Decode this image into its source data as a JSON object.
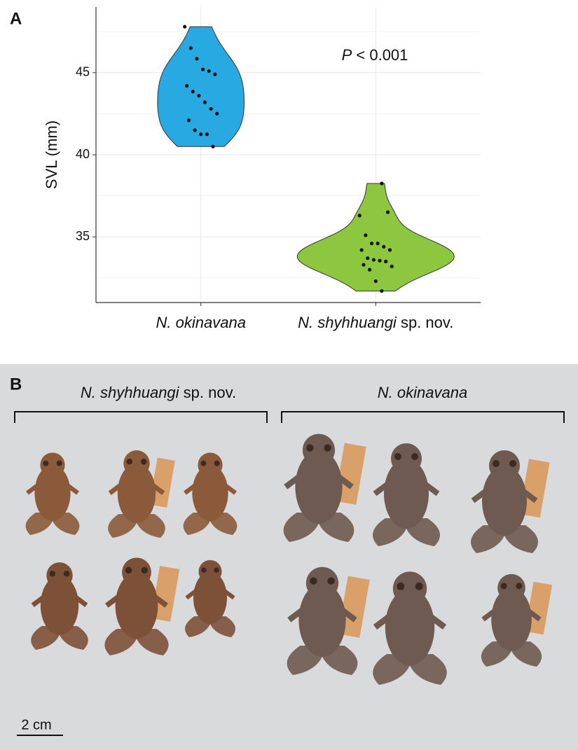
{
  "panel_a_label": "A",
  "chart_data": {
    "type": "violin",
    "y_label": "SVL (mm)",
    "annotation": "P < 0.001",
    "categories": [
      "N. okinavana",
      "N. shyhhuangi sp. nov."
    ],
    "series": [
      {
        "name": "N. okinavana",
        "color": "#29a9e1",
        "values": [
          47.8,
          46.5,
          45.85,
          45.2,
          45.1,
          44.9,
          44.2,
          43.85,
          43.6,
          43.2,
          42.8,
          42.5,
          42.1,
          41.5,
          41.25,
          41.25,
          40.5
        ]
      },
      {
        "name": "N. shyhhuangi sp. nov.",
        "color": "#8dc63f",
        "values": [
          38.25,
          36.5,
          36.3,
          35.1,
          34.6,
          34.6,
          34.4,
          34.2,
          34.2,
          33.7,
          33.6,
          33.55,
          33.5,
          33.2,
          33.3,
          33.0,
          32.3,
          31.7
        ]
      }
    ],
    "ylim": [
      31,
      49
    ],
    "yticks": [
      35,
      40,
      45
    ],
    "minor_yticks": [
      32.5,
      37.5,
      42.5,
      47.5
    ],
    "grid": true
  },
  "panel_b": {
    "label": "B",
    "left_group": "N. shyhhuangi sp. nov.",
    "right_group": "N. okinavana",
    "scale_bar": "2 cm"
  }
}
